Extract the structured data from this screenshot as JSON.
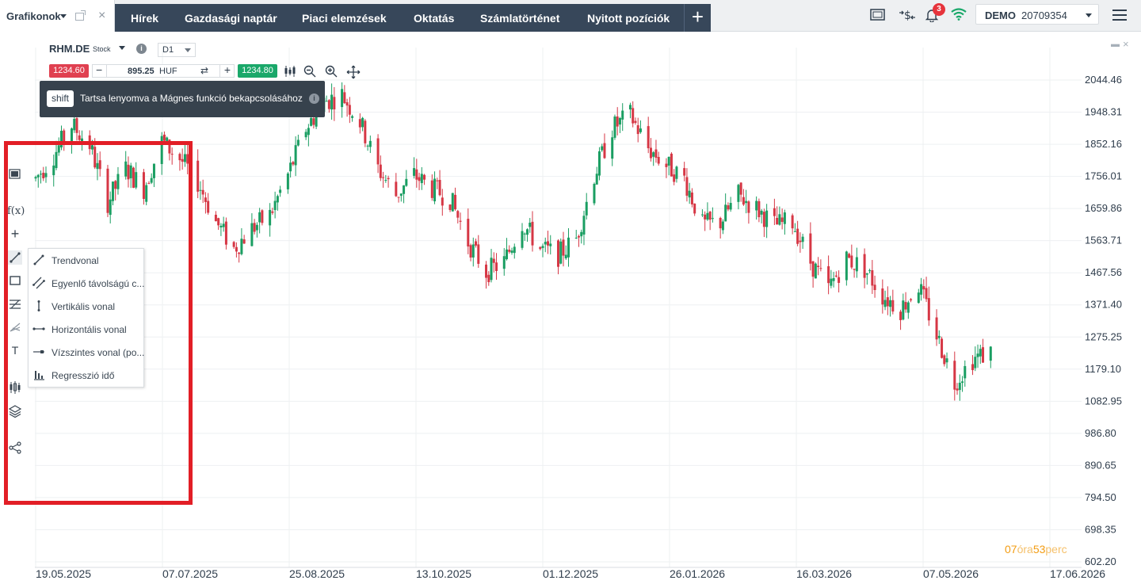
{
  "tab": {
    "label": "Grafikonok"
  },
  "nav": [
    "Hírek",
    "Gazdasági naptár",
    "Piaci elemzések",
    "Oktatás",
    "Számlatörténet",
    "Nyitott pozíciók"
  ],
  "notifications": {
    "count": "3"
  },
  "account": {
    "mode": "DEMO",
    "number": "20709354"
  },
  "instrument": {
    "symbol": "RHM.DE",
    "type": "Stock",
    "timeframe": "D1"
  },
  "order": {
    "sell": "1234.60",
    "buy": "1234.80",
    "quantity": "895.25",
    "currency": "HUF"
  },
  "tooltip": {
    "key": "shift",
    "text": "Tartsa lenyomva a Mágnes funkció bekapcsolásához"
  },
  "draw_menu": [
    {
      "label": "Trendvonal",
      "icon": "trendline-icon"
    },
    {
      "label": "Egyenlő távolságú c...",
      "icon": "parallel-channel-icon"
    },
    {
      "label": "Vertikális vonal",
      "icon": "vertical-line-icon"
    },
    {
      "label": "Horizontális vonal",
      "icon": "horizontal-line-icon"
    },
    {
      "label": "Vízszintes vonal (po...",
      "icon": "horizontal-ray-icon"
    },
    {
      "label": "Regresszió idő",
      "icon": "regression-icon"
    }
  ],
  "countdown": {
    "hours": "07",
    "hours_unit": "óra",
    "minutes": "53",
    "minutes_unit": "perc"
  },
  "colors": {
    "up": "#1a9e62",
    "down": "#d63745",
    "nav_bg": "#37475a",
    "highlight": "#e21e26"
  },
  "chart_data": {
    "type": "candlestick",
    "y_ticks": [
      "2044.46",
      "1948.31",
      "1852.16",
      "1756.01",
      "1659.86",
      "1563.71",
      "1467.56",
      "1371.40",
      "1275.25",
      "1179.10",
      "1082.95",
      "986.80",
      "890.65",
      "794.50",
      "698.35",
      "602.20"
    ],
    "x_ticks": [
      "19.05.2025",
      "07.07.2025",
      "25.08.2025",
      "13.10.2025",
      "01.12.2025",
      "26.01.2026",
      "16.03.2026",
      "07.05.2026",
      "17.06.2026"
    ],
    "ylim": [
      602.2,
      2044.46
    ],
    "grid": true,
    "close_path": [
      [
        "19.05.2025",
        1750
      ],
      [
        "26.05.2025",
        1820
      ],
      [
        "02.06.2025",
        1910
      ],
      [
        "09.06.2025",
        1850
      ],
      [
        "16.06.2025",
        1680
      ],
      [
        "23.06.2025",
        1780
      ],
      [
        "30.06.2025",
        1720
      ],
      [
        "07.07.2025",
        1860
      ],
      [
        "14.07.2025",
        1810
      ],
      [
        "21.07.2025",
        1740
      ],
      [
        "28.07.2025",
        1620
      ],
      [
        "04.08.2025",
        1540
      ],
      [
        "11.08.2025",
        1600
      ],
      [
        "18.08.2025",
        1640
      ],
      [
        "25.08.2025",
        1760
      ],
      [
        "01.09.2025",
        1900
      ],
      [
        "08.09.2025",
        1980
      ],
      [
        "15.09.2025",
        2000
      ],
      [
        "22.09.2025",
        1920
      ],
      [
        "29.09.2025",
        1780
      ],
      [
        "06.10.2025",
        1700
      ],
      [
        "13.10.2025",
        1760
      ],
      [
        "20.10.2025",
        1720
      ],
      [
        "27.10.2025",
        1690
      ],
      [
        "03.11.2025",
        1560
      ],
      [
        "10.11.2025",
        1470
      ],
      [
        "17.11.2025",
        1500
      ],
      [
        "24.11.2025",
        1620
      ],
      [
        "01.12.2025",
        1540
      ],
      [
        "08.12.2025",
        1520
      ],
      [
        "15.12.2025",
        1570
      ],
      [
        "22.12.2025",
        1760
      ],
      [
        "29.12.2025",
        1900
      ],
      [
        "05.01.2026",
        1940
      ],
      [
        "12.01.2026",
        1840
      ],
      [
        "19.01.2026",
        1790
      ],
      [
        "26.01.2026",
        1750
      ],
      [
        "02.02.2026",
        1610
      ],
      [
        "09.02.2026",
        1620
      ],
      [
        "16.02.2026",
        1700
      ],
      [
        "23.02.2026",
        1660
      ],
      [
        "02.03.2026",
        1610
      ],
      [
        "09.03.2026",
        1620
      ],
      [
        "16.03.2026",
        1500
      ],
      [
        "23.03.2026",
        1420
      ],
      [
        "30.03.2026",
        1510
      ],
      [
        "06.04.2026",
        1480
      ],
      [
        "13.04.2026",
        1400
      ],
      [
        "20.04.2026",
        1360
      ],
      [
        "27.04.2026",
        1430
      ],
      [
        "04.05.2026",
        1280
      ],
      [
        "11.05.2026",
        1140
      ],
      [
        "18.05.2026",
        1210
      ],
      [
        "25.05.2026",
        1230
      ]
    ]
  }
}
